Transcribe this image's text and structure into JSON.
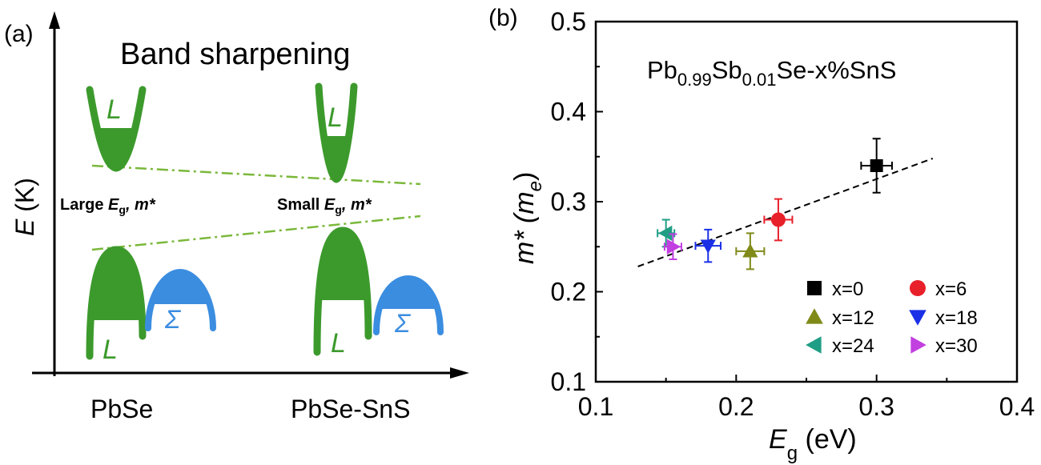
{
  "panel_a": {
    "label": "(a)",
    "title": "Band sharpening",
    "y_axis_label": "E",
    "y_axis_unit": "(K)",
    "left": {
      "name": "PbSe",
      "caption_prefix": "Large",
      "caption_eg": "E",
      "caption_eg_sub": "g",
      "caption_suffix": ", m*",
      "conduction_label": "L",
      "valence_label": "L",
      "sigma_label": "Σ"
    },
    "right": {
      "name": "PbSe-SnS",
      "caption_prefix": "Small",
      "caption_eg": "E",
      "caption_eg_sub": "g",
      "caption_suffix": ", m*",
      "conduction_label": "L",
      "valence_label": "L",
      "sigma_label": "Σ"
    },
    "colors": {
      "L_band": "#3c9a2c",
      "sigma_band": "#3b8de0",
      "guide": "#7ab83a"
    }
  },
  "panel_b": {
    "label": "(b)",
    "annotation": {
      "base1": "Pb",
      "sub1": "0.99",
      "base2": "Sb",
      "sub2": "0.01",
      "tail": "Se-x%SnS"
    },
    "xlabel": {
      "main": "E",
      "sub": "g",
      "unit": " (eV)"
    },
    "ylabel": {
      "main": "m* (m",
      "sub": "e",
      "close": ")"
    }
  },
  "chart_data": {
    "type": "scatter",
    "title": "",
    "xlim": [
      0.1,
      0.4
    ],
    "ylim": [
      0.1,
      0.5
    ],
    "xticks": [
      "0.1",
      "0.2",
      "0.3",
      "0.4"
    ],
    "yticks": [
      "0.1",
      "0.2",
      "0.3",
      "0.4",
      "0.5"
    ],
    "legend_position": "lower-right",
    "series": [
      {
        "name": "x=0",
        "marker": "square",
        "color": "#000000",
        "x": 0.3,
        "y": 0.34,
        "xerr": 0.011,
        "yerr": 0.03
      },
      {
        "name": "x=6",
        "marker": "circle",
        "color": "#e8202a",
        "x": 0.23,
        "y": 0.28,
        "xerr": 0.01,
        "yerr": 0.023
      },
      {
        "name": "x=12",
        "marker": "triangle-up",
        "color": "#808a18",
        "x": 0.21,
        "y": 0.245,
        "xerr": 0.01,
        "yerr": 0.02
      },
      {
        "name": "x=18",
        "marker": "triangle-down",
        "color": "#1a2fe6",
        "x": 0.18,
        "y": 0.251,
        "xerr": 0.009,
        "yerr": 0.018
      },
      {
        "name": "x=24",
        "marker": "triangle-left",
        "color": "#1f9e85",
        "x": 0.15,
        "y": 0.265,
        "xerr": 0.006,
        "yerr": 0.015
      },
      {
        "name": "x=30",
        "marker": "triangle-right",
        "color": "#c23fe0",
        "x": 0.155,
        "y": 0.25,
        "xerr": 0.006,
        "yerr": 0.014
      }
    ],
    "fit_line": {
      "style": "dashed",
      "color": "#000000",
      "x": [
        0.13,
        0.34
      ],
      "y": [
        0.228,
        0.348
      ]
    }
  }
}
